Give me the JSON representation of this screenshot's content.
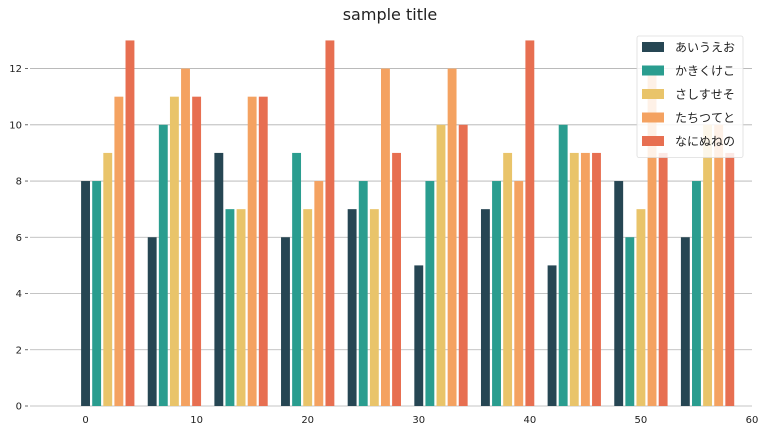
{
  "chart_data": {
    "type": "bar",
    "title": "sample title",
    "xlabel": "",
    "ylabel": "",
    "xlim": [
      -5,
      60
    ],
    "ylim": [
      0,
      13.3
    ],
    "xticks": [
      0,
      10,
      20,
      30,
      40,
      50,
      60
    ],
    "yticks": [
      0,
      2,
      4,
      6,
      8,
      10,
      12
    ],
    "grid": "y",
    "legend_position": "top-right",
    "bar_width": 0.8,
    "series_offsets": [
      0,
      1,
      2,
      3,
      4
    ],
    "categories": [
      0,
      6,
      12,
      18,
      24,
      30,
      36,
      42,
      48,
      54
    ],
    "series": [
      {
        "name": "あいうえお",
        "color": "#264653",
        "values": [
          8,
          6,
          9,
          6,
          7,
          5,
          7,
          5,
          8,
          6
        ]
      },
      {
        "name": "かきくけこ",
        "color": "#2a9d8f",
        "values": [
          8,
          10,
          7,
          9,
          8,
          8,
          8,
          10,
          6,
          8
        ]
      },
      {
        "name": "さしすせそ",
        "color": "#e9c46a",
        "values": [
          9,
          11,
          7,
          7,
          7,
          10,
          9,
          9,
          7,
          10
        ]
      },
      {
        "name": "たちつてと",
        "color": "#f4a261",
        "values": [
          11,
          12,
          11,
          8,
          12,
          12,
          8,
          9,
          12,
          10
        ]
      },
      {
        "name": "なにぬねの",
        "color": "#e76f51",
        "values": [
          13,
          11,
          11,
          13,
          9,
          10,
          13,
          9,
          9,
          9
        ]
      }
    ]
  }
}
